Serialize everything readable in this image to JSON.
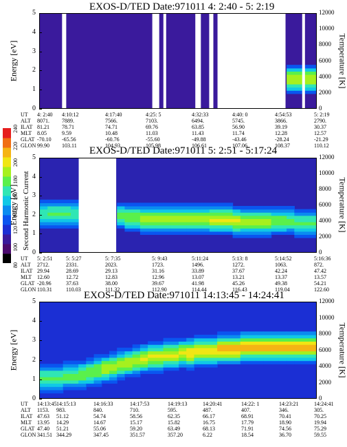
{
  "colorbar": {
    "label": "Second Harmonic Current",
    "ticks": [
      "80",
      "100",
      "120",
      "140",
      "160",
      "180",
      "200",
      "220",
      "240"
    ],
    "colors": [
      "#000000",
      "#4b0a6e",
      "#3a1a9c",
      "#1b2fd4",
      "#0a55f0",
      "#0a8cf0",
      "#10c8e6",
      "#30e6b4",
      "#5af04b",
      "#a6f01e",
      "#f0e614",
      "#f5b414",
      "#f06e14",
      "#e61e1e"
    ]
  },
  "panels": [
    {
      "title": "EXOS-D/TED   Date:971011  4: 2:40 - 5: 2:19",
      "ylabel_left": "Energy [eV]",
      "ylabel_right": "Temperature [K]",
      "yticks_left": [
        "0",
        "1",
        "2",
        "3",
        "4",
        "5"
      ],
      "yticks_right": [
        "0",
        "2000",
        "4000",
        "6000",
        "8000",
        "10000",
        "12000"
      ],
      "eph_labels": [
        "UT",
        "ALT",
        "ILAT",
        "MLT",
        "GLAT",
        "GLON"
      ],
      "eph_cols": [
        [
          "4: 2:40",
          "8071.",
          "81.21",
          "8.05",
          "-70.10",
          "99.90"
        ],
        [
          "4:10:12",
          "7889.",
          "78.71",
          "9.59",
          "-65.56",
          "103.11"
        ],
        [
          "4:17:40",
          "7566.",
          "74.71",
          "10.48",
          "-60.76",
          "104.93"
        ],
        [
          "4:25: 5",
          "7103.",
          "69.76",
          "11.03",
          "-55.60",
          "105.98"
        ],
        [
          "4:32:33",
          "6494.",
          "63.85",
          "11.43",
          "-49.88",
          "106.61"
        ],
        [
          "4:40: 0",
          "5745.",
          "56.90",
          "11.74",
          "-43.46",
          "107.06"
        ],
        [
          "4:54:53",
          "3866.",
          "39.19",
          "12.28",
          "-28.24",
          "108.37"
        ],
        [
          "5: 2:19",
          "2790.",
          "30.37",
          "12.57",
          "-21.29",
          "110.12"
        ]
      ]
    },
    {
      "title": "EXOS-D/TED   Date:971011  5: 2:51 - 5:17:24",
      "ylabel_left": "Energy [eV]",
      "ylabel_right": "Temperature [K]",
      "yticks_left": [
        "0",
        "1",
        "2",
        "3",
        "4",
        "5"
      ],
      "yticks_right": [
        "0",
        "2000",
        "4000",
        "6000",
        "8000",
        "10000",
        "12000"
      ],
      "eph_labels": [
        "UT",
        "ALT",
        "ILAT",
        "MLT",
        "GLAT",
        "GLON"
      ],
      "eph_cols": [
        [
          "5: 2:51",
          "2712.",
          "29.94",
          "12.60",
          "-20.96",
          "110.31"
        ],
        [
          "5: 5:27",
          "2331.",
          "28.69",
          "12.72",
          "37.63",
          "110.03"
        ],
        [
          "5: 7:35",
          "2023.",
          "29.13",
          "12.83",
          "38.00",
          "111.32"
        ],
        [
          "5: 9:43",
          "1723.",
          "31.16",
          "12.96",
          "39.67",
          "112.90"
        ],
        [
          "5:11:24",
          "1496.",
          "33.89",
          "13.07",
          "41.98",
          "114.44"
        ],
        [
          "5:13: 8",
          "1272.",
          "37.67",
          "13.21",
          "45.26",
          "116.43"
        ],
        [
          "5:14:52",
          "1063.",
          "42.24",
          "13.37",
          "49.38",
          "119.04"
        ],
        [
          "5:16:36",
          "872.",
          "47.42",
          "13.57",
          "54.21",
          "122.60"
        ]
      ]
    },
    {
      "title": "EXOS-D/TED   Date:971011  14:13:45 - 14:24:41",
      "ylabel_left": "Energy [eV]",
      "ylabel_right": "Temperature [K]",
      "yticks_left": [
        "0",
        "1",
        "2",
        "3",
        "4",
        "5"
      ],
      "yticks_right": [
        "0",
        "2000",
        "4000",
        "6000",
        "8000",
        "10000",
        "12000"
      ],
      "eph_labels": [
        "UT",
        "ALT",
        "ILAT",
        "MLT",
        "GLAT",
        "GLON"
      ],
      "eph_cols": [
        [
          "14:13:45",
          "1153.",
          "47.63",
          "13.95",
          "47.40",
          "341.51"
        ],
        [
          "14:15:13",
          "983.",
          "51.12",
          "14.29",
          "51.21",
          "344.29"
        ],
        [
          "14:16:33",
          "840.",
          "54.74",
          "14.67",
          "55.06",
          "347.45"
        ],
        [
          "14:17:53",
          "710.",
          "58.56",
          "15.17",
          "59.20",
          "351.57"
        ],
        [
          "14:19:13",
          "595.",
          "62.35",
          "15.82",
          "63.49",
          "357.20"
        ],
        [
          "14:20:41",
          "487.",
          "66.17",
          "16.75",
          "68.13",
          "6.22"
        ],
        [
          "14:22: 1",
          "407.",
          "68.91",
          "17.79",
          "71.91",
          "18.54"
        ],
        [
          "14:23:21",
          "346.",
          "70.41",
          "18.90",
          "74.56",
          "36.70"
        ],
        [
          "14:24:41",
          "305.",
          "70.25",
          "19.94",
          "75.29",
          "59.55"
        ]
      ]
    }
  ],
  "chart_data": [
    {
      "type": "heatmap",
      "title": "EXOS-D/TED   Date:971011  4: 2:40 - 5: 2:19",
      "xlabel": "UT",
      "ylabel": "Energy [eV]",
      "ylabel_right": "Temperature [K]",
      "x": [
        "4: 2:40",
        "4:10:12",
        "4:17:40",
        "4:25: 5",
        "4:32:33",
        "4:40: 0",
        "4:54:53",
        "5: 2:19"
      ],
      "ylim": [
        0,
        5
      ],
      "ylim_right": [
        0,
        12000
      ],
      "colorbar_label": "Second Harmonic Current",
      "colorbar_range": [
        80,
        240
      ],
      "band_energy_center": [
        0,
        0,
        0,
        0,
        0,
        0,
        0,
        0,
        0,
        0,
        0,
        0,
        0,
        0,
        0,
        0,
        0,
        0,
        0,
        0,
        0,
        0,
        0,
        0,
        0,
        0,
        0,
        0,
        0,
        0,
        0,
        0,
        1.6,
        1.6,
        1.6,
        1.6
      ],
      "band_level": [
        0,
        0,
        0,
        0,
        0,
        0,
        0,
        0,
        0,
        0,
        0,
        0,
        0,
        0,
        0,
        0,
        0,
        0,
        0,
        0,
        0,
        0,
        0,
        0,
        0,
        0,
        0,
        0,
        0,
        0,
        0,
        0,
        0.55,
        0.55,
        0.55,
        0.55
      ],
      "gaps": [
        [
          0.08,
          0.095
        ],
        [
          0.405,
          0.43
        ],
        [
          0.445,
          0.455
        ],
        [
          0.56,
          0.58
        ],
        [
          0.61,
          0.625
        ],
        [
          0.64,
          0.885
        ],
        [
          0.945,
          0.955
        ]
      ]
    },
    {
      "type": "heatmap",
      "title": "EXOS-D/TED   Date:971011  5: 2:51 - 5:17:24",
      "xlabel": "UT",
      "ylabel": "Energy [eV]",
      "ylabel_right": "Temperature [K]",
      "x": [
        "5: 2:51",
        "5: 5:27",
        "5: 7:35",
        "5: 9:43",
        "5:11:24",
        "5:13: 8",
        "5:14:52",
        "5:16:36"
      ],
      "ylim": [
        0,
        5
      ],
      "ylim_right": [
        0,
        12000
      ],
      "colorbar_label": "Second Harmonic Current",
      "colorbar_range": [
        80,
        240
      ],
      "band_energy_center": [
        2.1,
        2.1,
        2.1,
        2.1,
        2.1,
        0,
        0,
        0,
        0,
        0,
        2.0,
        1.9,
        1.9,
        1.8,
        1.8,
        1.8,
        1.8,
        1.8,
        1.8,
        1.8,
        1.8,
        1.8,
        1.8,
        1.8,
        1.8,
        1.7,
        1.7,
        1.7,
        1.7,
        1.7,
        1.7,
        1.7,
        1.7,
        1.6,
        1.6,
        1.6
      ],
      "band_level": [
        0.4,
        0.45,
        0.45,
        0.45,
        0.4,
        0,
        0,
        0,
        0,
        0,
        0.45,
        0.5,
        0.5,
        0.55,
        0.55,
        0.55,
        0.55,
        0.55,
        0.55,
        0.55,
        0.55,
        0.55,
        0.6,
        0.6,
        0.6,
        0.6,
        0.55,
        0.55,
        0.55,
        0.55,
        0.5,
        0.5,
        0.45,
        0.45,
        0.45,
        0.45
      ],
      "gaps": [
        [
          0.14,
          0.275
        ]
      ]
    },
    {
      "type": "heatmap",
      "title": "EXOS-D/TED   Date:971011  14:13:45 - 14:24:41",
      "xlabel": "UT",
      "ylabel": "Energy [eV]",
      "ylabel_right": "Temperature [K]",
      "x": [
        "14:13:45",
        "14:15:13",
        "14:16:33",
        "14:17:53",
        "14:19:13",
        "14:20:41",
        "14:22: 1",
        "14:23:21",
        "14:24:41"
      ],
      "ylim": [
        0,
        5
      ],
      "ylim_right": [
        0,
        12000
      ],
      "colorbar_label": "Second Harmonic Current",
      "colorbar_range": [
        80,
        240
      ],
      "band_energy_center": [
        1.1,
        1.1,
        1.1,
        1.2,
        1.2,
        1.3,
        1.4,
        1.5,
        1.6,
        1.7,
        1.8,
        1.9,
        2.0,
        2.1,
        2.2,
        2.2,
        2.3,
        2.3,
        2.4,
        2.4,
        2.5,
        2.5,
        2.5,
        2.6,
        2.6,
        2.6,
        2.7,
        2.7,
        2.7,
        2.7,
        2.7,
        2.7,
        2.7,
        2.7,
        2.7,
        2.7
      ],
      "band_level": [
        0.45,
        0.45,
        0.45,
        0.45,
        0.45,
        0.5,
        0.5,
        0.5,
        0.55,
        0.55,
        0.55,
        0.55,
        0.55,
        0.6,
        0.6,
        0.6,
        0.6,
        0.6,
        0.6,
        0.65,
        0.65,
        0.65,
        0.65,
        0.7,
        0.7,
        0.7,
        0.7,
        0.7,
        0.7,
        0.7,
        0.7,
        0.7,
        0.7,
        0.7,
        0.7,
        0.7
      ],
      "gaps": []
    }
  ]
}
